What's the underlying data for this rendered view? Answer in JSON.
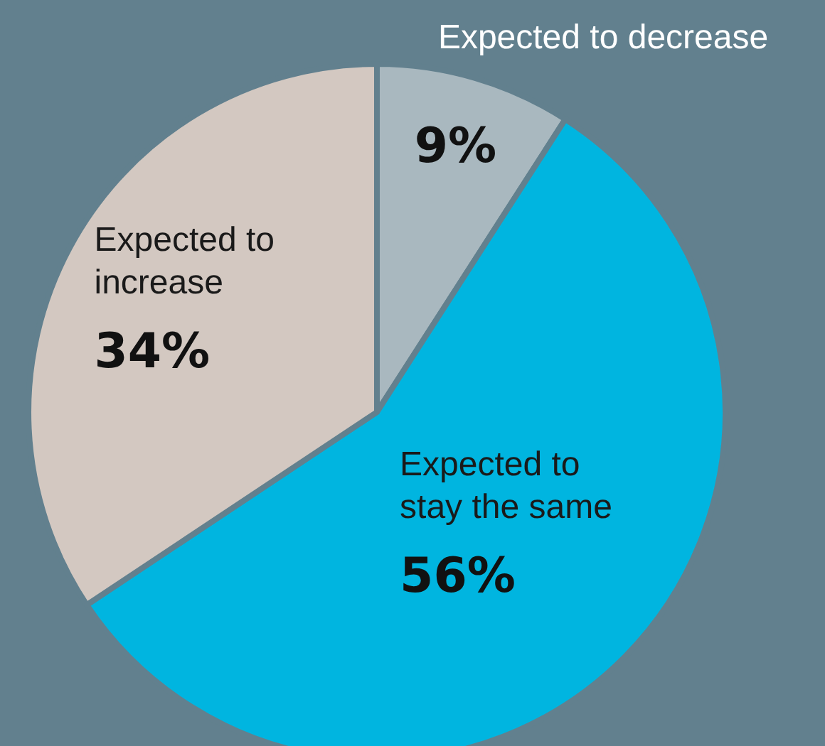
{
  "chart_data": {
    "type": "pie",
    "categories": [
      "Expected to decrease",
      "Expected to stay the same",
      "Expected to increase"
    ],
    "values": [
      9,
      56,
      34
    ],
    "colors": [
      "#a9b8bf",
      "#00b5e0",
      "#d3c8c1"
    ],
    "value_labels": [
      "9%",
      "56%",
      "34%"
    ]
  }
}
